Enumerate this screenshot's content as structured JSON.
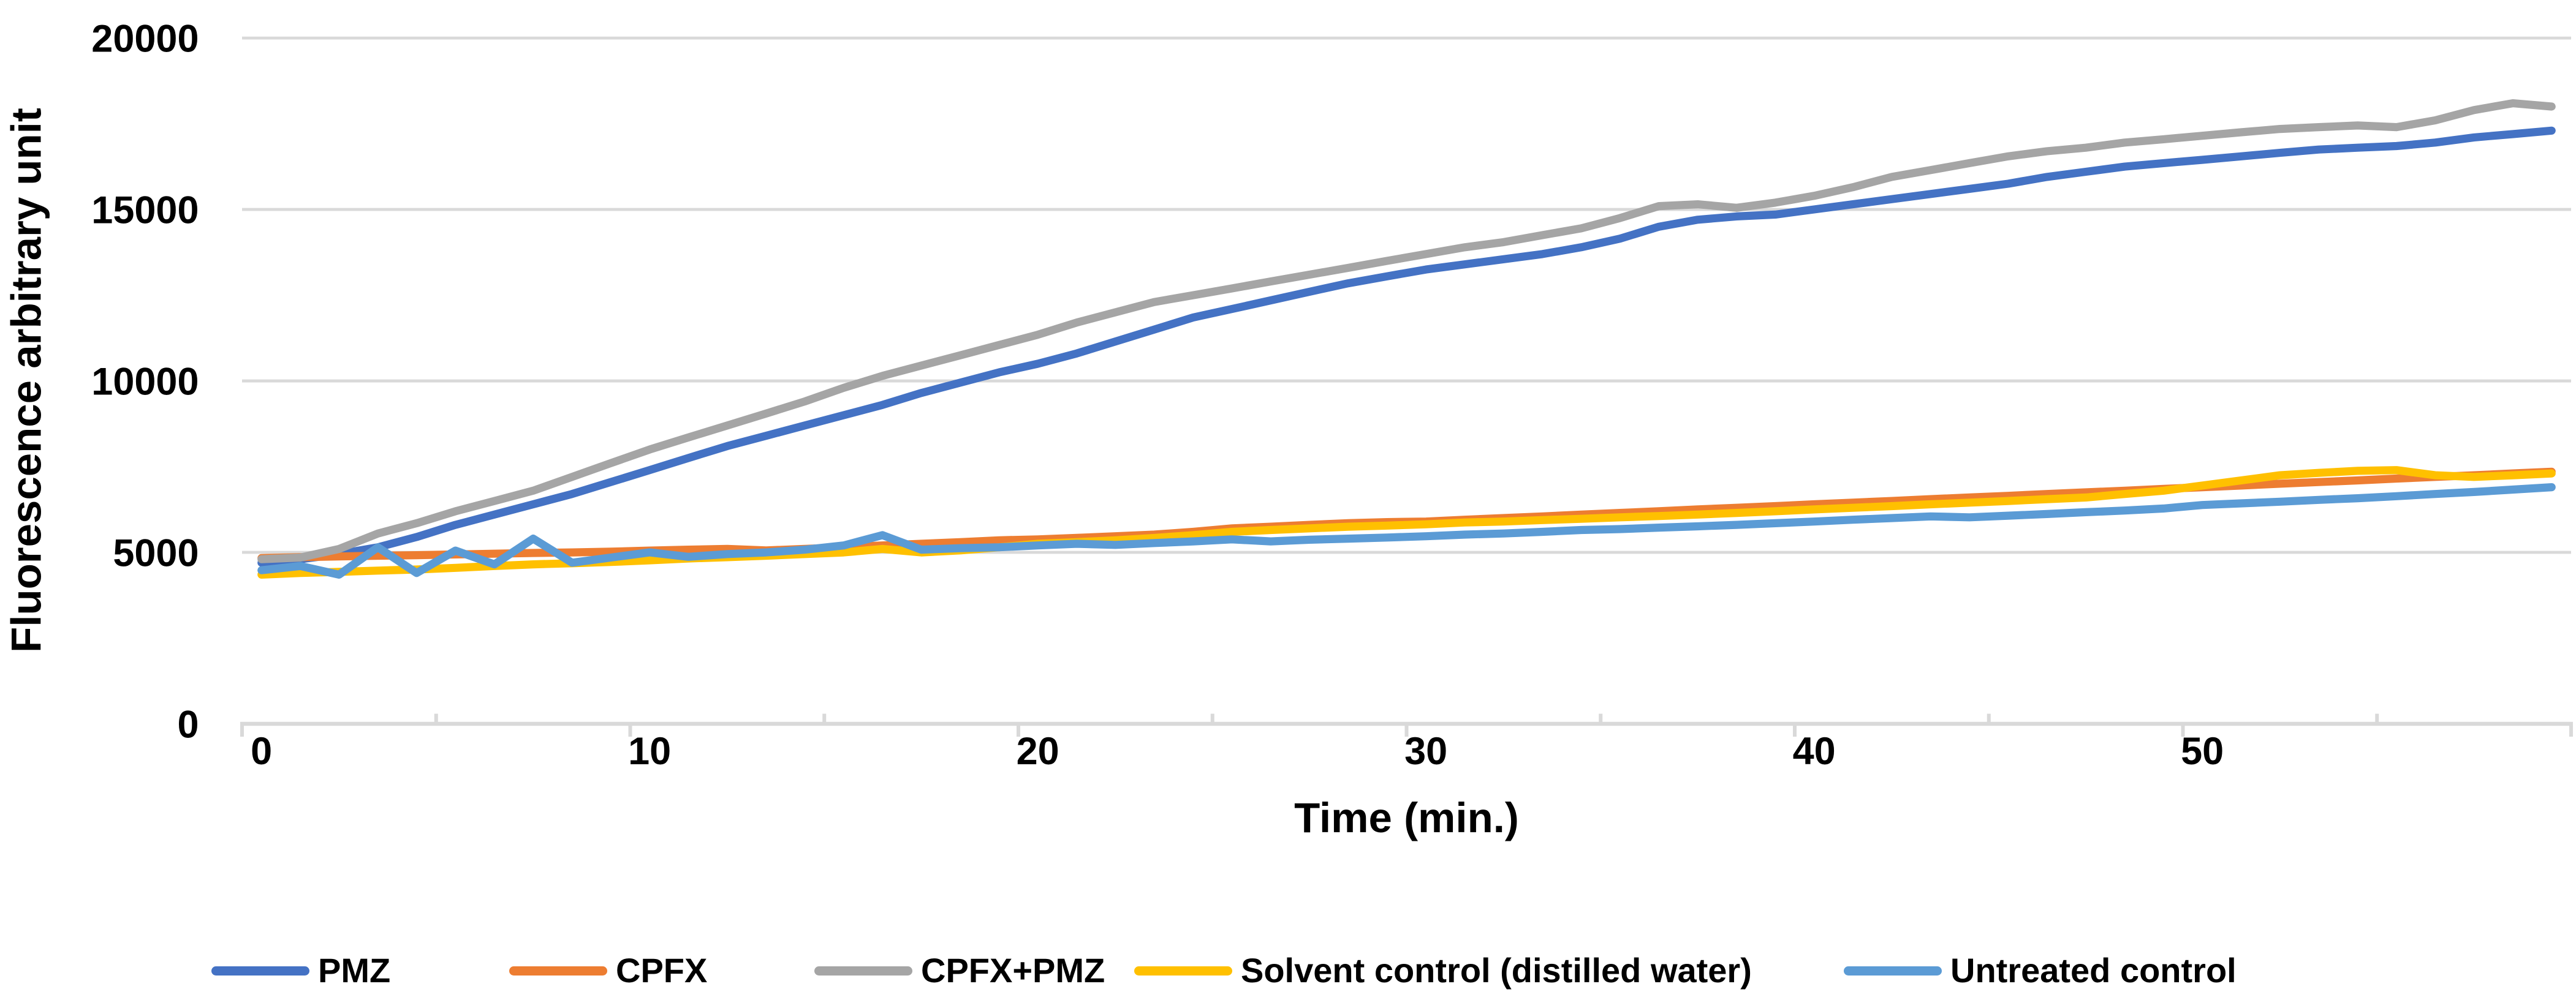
{
  "chart_data": {
    "type": "line",
    "title": "",
    "xlabel": "Time (min.)",
    "ylabel": "Fluorescence arbitrary unit",
    "xlim": [
      0,
      60
    ],
    "ylim": [
      0,
      20000
    ],
    "x_ticks": [
      0,
      10,
      20,
      30,
      40,
      50
    ],
    "y_ticks": [
      0,
      5000,
      10000,
      15000,
      20000
    ],
    "grid": true,
    "legend_position": "bottom",
    "x": [
      0,
      1,
      2,
      3,
      4,
      5,
      6,
      7,
      8,
      9,
      10,
      11,
      12,
      13,
      14,
      15,
      16,
      17,
      18,
      19,
      20,
      21,
      22,
      23,
      24,
      25,
      26,
      27,
      28,
      29,
      30,
      31,
      32,
      33,
      34,
      35,
      36,
      37,
      38,
      39,
      40,
      41,
      42,
      43,
      44,
      45,
      46,
      47,
      48,
      49,
      50,
      51,
      52,
      53,
      54,
      55,
      56,
      57,
      58,
      59
    ],
    "series": [
      {
        "name": "PMZ",
        "color": "#4472C4",
        "values": [
          4700,
          4800,
          4950,
          5150,
          5450,
          5800,
          6100,
          6400,
          6700,
          7050,
          7400,
          7750,
          8100,
          8400,
          8700,
          9000,
          9300,
          9650,
          9950,
          10250,
          10500,
          10800,
          11150,
          11500,
          11850,
          12100,
          12350,
          12600,
          12850,
          13050,
          13250,
          13400,
          13550,
          13700,
          13900,
          14150,
          14500,
          14700,
          14800,
          14850,
          15000,
          15150,
          15300,
          15450,
          15600,
          15750,
          15950,
          16100,
          16250,
          16350,
          16450,
          16550,
          16650,
          16750,
          16800,
          16850,
          16950,
          17100,
          17200,
          17300
        ]
      },
      {
        "name": "CPFX",
        "color": "#ED7D31",
        "values": [
          4830,
          4860,
          4880,
          4900,
          4920,
          4940,
          4960,
          4980,
          5000,
          5020,
          5050,
          5080,
          5100,
          5060,
          5100,
          5150,
          5200,
          5250,
          5300,
          5350,
          5380,
          5420,
          5470,
          5520,
          5600,
          5700,
          5750,
          5800,
          5850,
          5880,
          5900,
          5950,
          6000,
          6050,
          6100,
          6150,
          6200,
          6250,
          6300,
          6350,
          6400,
          6450,
          6500,
          6550,
          6600,
          6650,
          6700,
          6750,
          6800,
          6850,
          6900,
          6950,
          7000,
          7050,
          7100,
          7150,
          7200,
          7250,
          7300,
          7350
        ]
      },
      {
        "name": "CPFX+PMZ",
        "color": "#A5A5A5",
        "values": [
          4800,
          4850,
          5100,
          5550,
          5850,
          6200,
          6500,
          6800,
          7200,
          7600,
          8000,
          8350,
          8700,
          9050,
          9400,
          9800,
          10150,
          10450,
          10750,
          11050,
          11350,
          11700,
          12000,
          12300,
          12500,
          12700,
          12900,
          13100,
          13300,
          13500,
          13700,
          13900,
          14050,
          14250,
          14450,
          14750,
          15100,
          15150,
          15050,
          15200,
          15400,
          15650,
          15950,
          16150,
          16350,
          16550,
          16700,
          16800,
          16950,
          17050,
          17150,
          17250,
          17350,
          17400,
          17450,
          17400,
          17600,
          17900,
          18100,
          18000
        ]
      },
      {
        "name": "Solvent control (distilled water)",
        "color": "#FFC000",
        "values": [
          4350,
          4400,
          4430,
          4470,
          4500,
          4550,
          4600,
          4650,
          4680,
          4720,
          4770,
          4820,
          4860,
          4900,
          4950,
          5000,
          5100,
          5000,
          5060,
          5150,
          5250,
          5300,
          5350,
          5420,
          5500,
          5600,
          5650,
          5700,
          5750,
          5780,
          5820,
          5870,
          5900,
          5940,
          5980,
          6020,
          6060,
          6100,
          6150,
          6200,
          6250,
          6300,
          6350,
          6400,
          6450,
          6500,
          6550,
          6600,
          6700,
          6800,
          6950,
          7100,
          7250,
          7320,
          7380,
          7400,
          7250,
          7200,
          7250,
          7300
        ]
      },
      {
        "name": "Untreated control",
        "color": "#5B9BD5",
        "values": [
          4480,
          4600,
          4350,
          5150,
          4400,
          5050,
          4650,
          5400,
          4700,
          4850,
          5000,
          4870,
          4950,
          5000,
          5080,
          5200,
          5500,
          5080,
          5120,
          5150,
          5200,
          5250,
          5220,
          5270,
          5320,
          5380,
          5320,
          5370,
          5400,
          5430,
          5470,
          5520,
          5550,
          5600,
          5650,
          5680,
          5720,
          5760,
          5800,
          5850,
          5900,
          5950,
          6000,
          6050,
          6020,
          6070,
          6120,
          6170,
          6220,
          6280,
          6380,
          6430,
          6480,
          6530,
          6580,
          6640,
          6700,
          6760,
          6830,
          6900
        ]
      }
    ]
  },
  "axes": {
    "x_title": "Time (min.)",
    "y_title": "Fluorescence arbitrary unit"
  },
  "legend": {
    "items": [
      {
        "label": "PMZ",
        "color": "#4472C4"
      },
      {
        "label": "CPFX",
        "color": "#ED7D31"
      },
      {
        "label": "CPFX+PMZ",
        "color": "#A5A5A5"
      },
      {
        "label": "Solvent control (distilled water)",
        "color": "#FFC000"
      },
      {
        "label": "Untreated control",
        "color": "#5B9BD5"
      }
    ]
  },
  "style": {
    "gridline_color": "#D9D9D9",
    "axis_color": "#D9D9D9",
    "text_color": "#000000"
  }
}
